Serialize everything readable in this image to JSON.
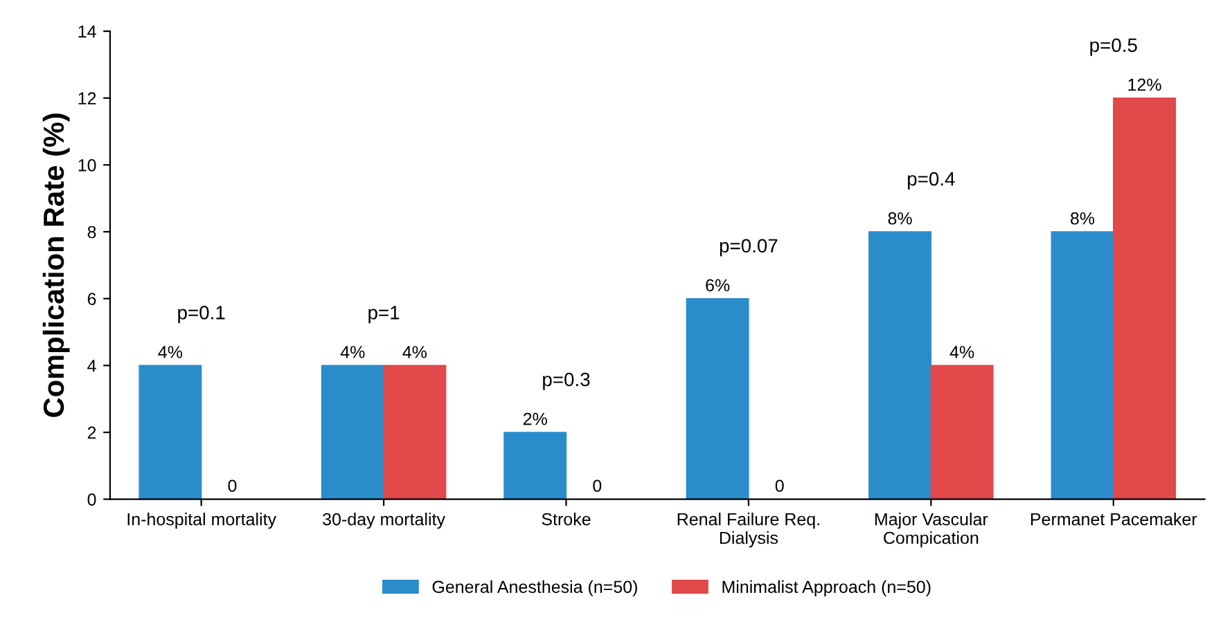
{
  "chart_data": {
    "type": "bar",
    "ylabel": "Complication Rate (%)",
    "categories": [
      "In-hospital mortality",
      "30-day mortality",
      "Stroke",
      "Renal Failure Req.\nDialysis",
      "Major Vascular\nCompication",
      "Permanet Pacemaker"
    ],
    "series": [
      {
        "name": "General Anesthesia (n=50)",
        "color": "#2b8ccb",
        "values": [
          4,
          4,
          2,
          6,
          8,
          8
        ],
        "value_labels": [
          "4%",
          "4%",
          "2%",
          "6%",
          "8%",
          "8%"
        ]
      },
      {
        "name": "Minimalist Approach (n=50)",
        "color": "#e0484a",
        "values": [
          0,
          4,
          0,
          0,
          4,
          12
        ],
        "value_labels": [
          "0",
          "4%",
          "0",
          "0",
          "4%",
          "12%"
        ]
      }
    ],
    "ylim": [
      0,
      14
    ],
    "yticks": [
      0,
      2,
      4,
      6,
      8,
      10,
      12,
      14
    ],
    "grid": false,
    "legend": "bottom",
    "annotations": [
      "p=0.1",
      "p=1",
      "p=0.3",
      "p=0.07",
      "p=0.4",
      "p=0.5"
    ]
  }
}
